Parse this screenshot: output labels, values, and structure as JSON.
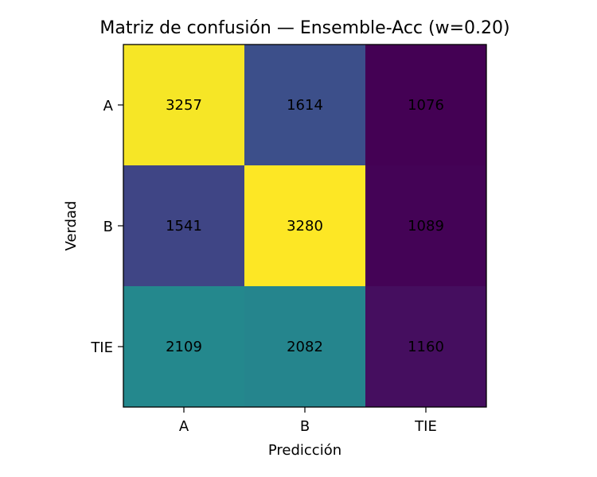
{
  "chart_data": {
    "type": "heatmap",
    "title": "Matriz de confusión — Ensemble-Acc (w=0.20)",
    "xlabel": "Predicción",
    "ylabel": "Verdad",
    "x_categories": [
      "A",
      "B",
      "TIE"
    ],
    "y_categories": [
      "A",
      "B",
      "TIE"
    ],
    "values": [
      [
        3257,
        1614,
        1076
      ],
      [
        1541,
        3280,
        1089
      ],
      [
        2109,
        2082,
        1160
      ]
    ],
    "colormap": "viridis",
    "color_range": [
      1076,
      3280
    ],
    "grid": false,
    "colorbar": false
  }
}
